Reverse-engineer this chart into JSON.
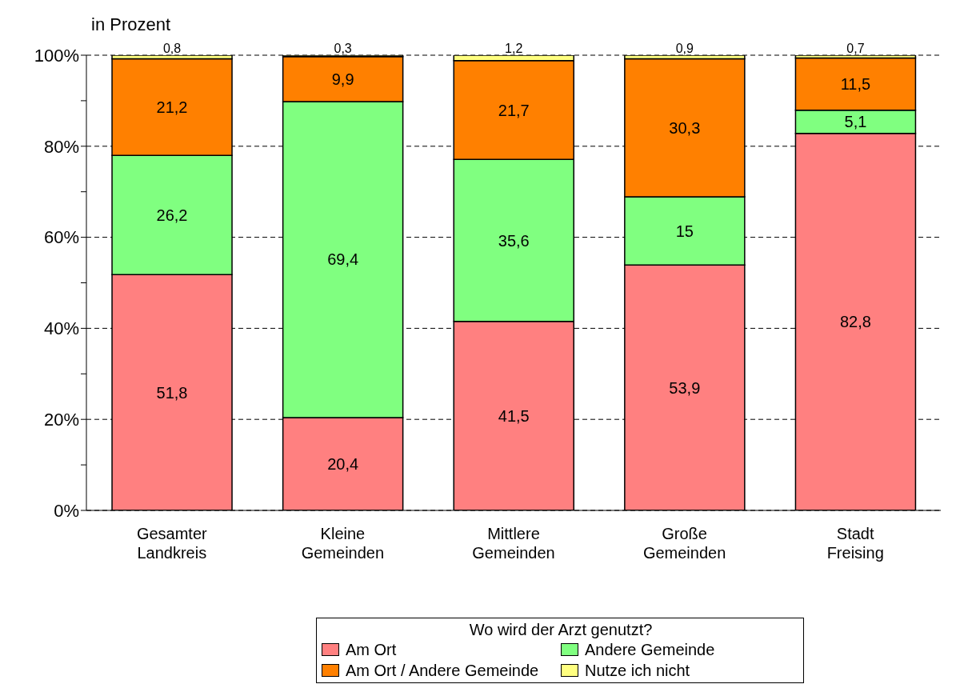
{
  "chart_data": {
    "type": "bar",
    "stacked": true,
    "ylabel": "in Prozent",
    "legend_title": "Wo wird der Arzt genutzt?",
    "legend": "bottom",
    "grid": "y",
    "categories": [
      "Gesamter Landkreis",
      "Kleine Gemeinden",
      "Mittlere Gemeinden",
      "Große Gemeinden",
      "Stadt Freising"
    ],
    "series": [
      {
        "name": "Am Ort",
        "color": "#ff8080",
        "values": [
          51.8,
          20.4,
          41.5,
          53.9,
          82.8
        ],
        "value_labels": [
          "51,8",
          "20,4",
          "41,5",
          "53,9",
          "82,8"
        ]
      },
      {
        "name": "Andere Gemeinde",
        "color": "#80ff80",
        "values": [
          26.2,
          69.4,
          35.6,
          15,
          5.1
        ],
        "value_labels": [
          "26,2",
          "69,4",
          "35,6",
          "15",
          "5,1"
        ]
      },
      {
        "name": "Am Ort / Andere Gemeinde",
        "color": "#ff8000",
        "values": [
          21.2,
          9.9,
          21.7,
          30.3,
          11.5
        ],
        "value_labels": [
          "21,2",
          "9,9",
          "21,7",
          "30,3",
          "11,5"
        ]
      },
      {
        "name": "Nutze ich nicht",
        "color": "#ffff80",
        "values": [
          0.8,
          0.3,
          1.2,
          0.9,
          0.7
        ],
        "value_labels": [
          "0,8",
          "0,3",
          "1,2",
          "0,9",
          "0,7"
        ]
      }
    ],
    "ylim": [
      0,
      100
    ],
    "yticks": [
      {
        "value": 0,
        "label": "0%"
      },
      {
        "value": 10,
        "label": null
      },
      {
        "value": 20,
        "label": "20%"
      },
      {
        "value": 30,
        "label": null
      },
      {
        "value": 40,
        "label": "40%"
      },
      {
        "value": 50,
        "label": null
      },
      {
        "value": 60,
        "label": "60%"
      },
      {
        "value": 70,
        "label": null
      },
      {
        "value": 80,
        "label": "80%"
      },
      {
        "value": 90,
        "label": null
      },
      {
        "value": 100,
        "label": "100%"
      }
    ]
  }
}
